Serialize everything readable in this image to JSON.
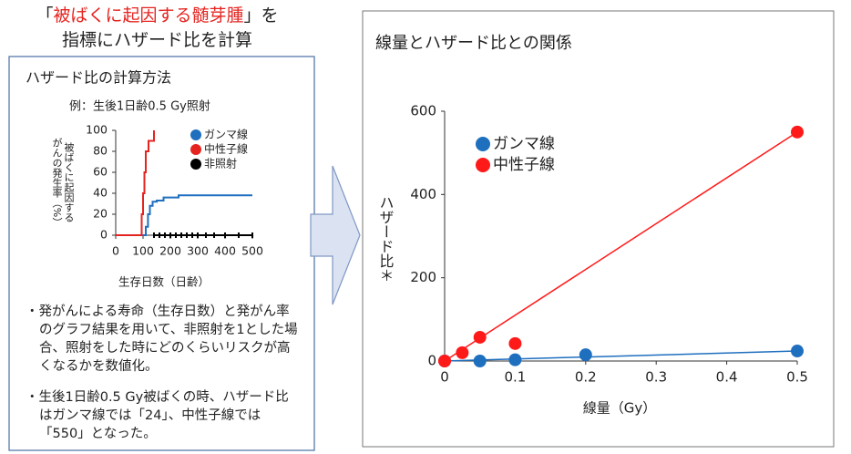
{
  "heading": {
    "prefix": "「",
    "highlight": "被ばくに起因する髄芽腫",
    "suffix": "」を",
    "line2": "指標にハザード比を計算"
  },
  "left_panel": {
    "title": "ハザード比の計算方法",
    "example": "例：生後1日齢0.5 Gy照射",
    "notes": [
      "・発がんによる寿命（生存日数）と発がん率のグラフ結果を用いて、非照射を1とした場合、照射をした時にどのくらいリスクが高くなるかを数値化。",
      "・生後1日齢0.5 Gy被ばくの時、ハザード比はガンマ線では「24」、中性子線では「550」となった。"
    ]
  },
  "chart_data": [
    {
      "type": "step",
      "x_label": "生存日数（日齢）",
      "y_label": [
        "被ばくに起因する",
        "がんの発生率（%）"
      ],
      "xlim": [
        0,
        500
      ],
      "xticks": [
        0,
        100,
        200,
        300,
        400,
        500
      ],
      "ylim": [
        0,
        100
      ],
      "yticks": [
        0,
        20,
        40,
        60,
        80,
        100
      ],
      "series": [
        {
          "name": "ガンマ線",
          "color": "#1f6fbf",
          "x": [
            0,
            105,
            110,
            118,
            125,
            135,
            150,
            175,
            230,
            500
          ],
          "values": [
            0,
            0,
            8,
            20,
            28,
            32,
            33,
            36,
            38,
            38
          ]
        },
        {
          "name": "中性子線",
          "color": "#e52420",
          "x": [
            0,
            90,
            95,
            100,
            105,
            110,
            120,
            140
          ],
          "values": [
            0,
            0,
            20,
            40,
            60,
            80,
            90,
            100
          ]
        },
        {
          "name": "非照射",
          "color": "#000000",
          "censor_marks": true,
          "x": [
            140,
            160,
            180,
            200,
            220,
            240,
            260,
            280,
            300,
            330,
            360,
            400,
            450,
            500
          ],
          "values": [
            0,
            0,
            0,
            0,
            0,
            0,
            0,
            0,
            0,
            0,
            0,
            0,
            0,
            0
          ]
        }
      ]
    },
    {
      "type": "scatter",
      "title": "線量とハザード比との関係",
      "x_label": "線量（Gy）",
      "y_label": "ハザード比＊",
      "trendline": true,
      "xlim": [
        0,
        0.5
      ],
      "xticks": [
        0,
        0.1,
        0.2,
        0.3,
        0.4,
        0.5
      ],
      "ylim": [
        0,
        600
      ],
      "yticks": [
        0,
        200,
        400,
        600
      ],
      "series": [
        {
          "name": "ガンマ線",
          "color": "#1f6fbf",
          "x": [
            0,
            0.05,
            0.1,
            0.2,
            0.5
          ],
          "values": [
            0,
            0,
            3,
            15,
            24
          ]
        },
        {
          "name": "中性子線",
          "color": "#ff1a1a",
          "x": [
            0,
            0.025,
            0.05,
            0.1,
            0.5
          ],
          "values": [
            0,
            20,
            57,
            42,
            550
          ]
        }
      ]
    }
  ]
}
